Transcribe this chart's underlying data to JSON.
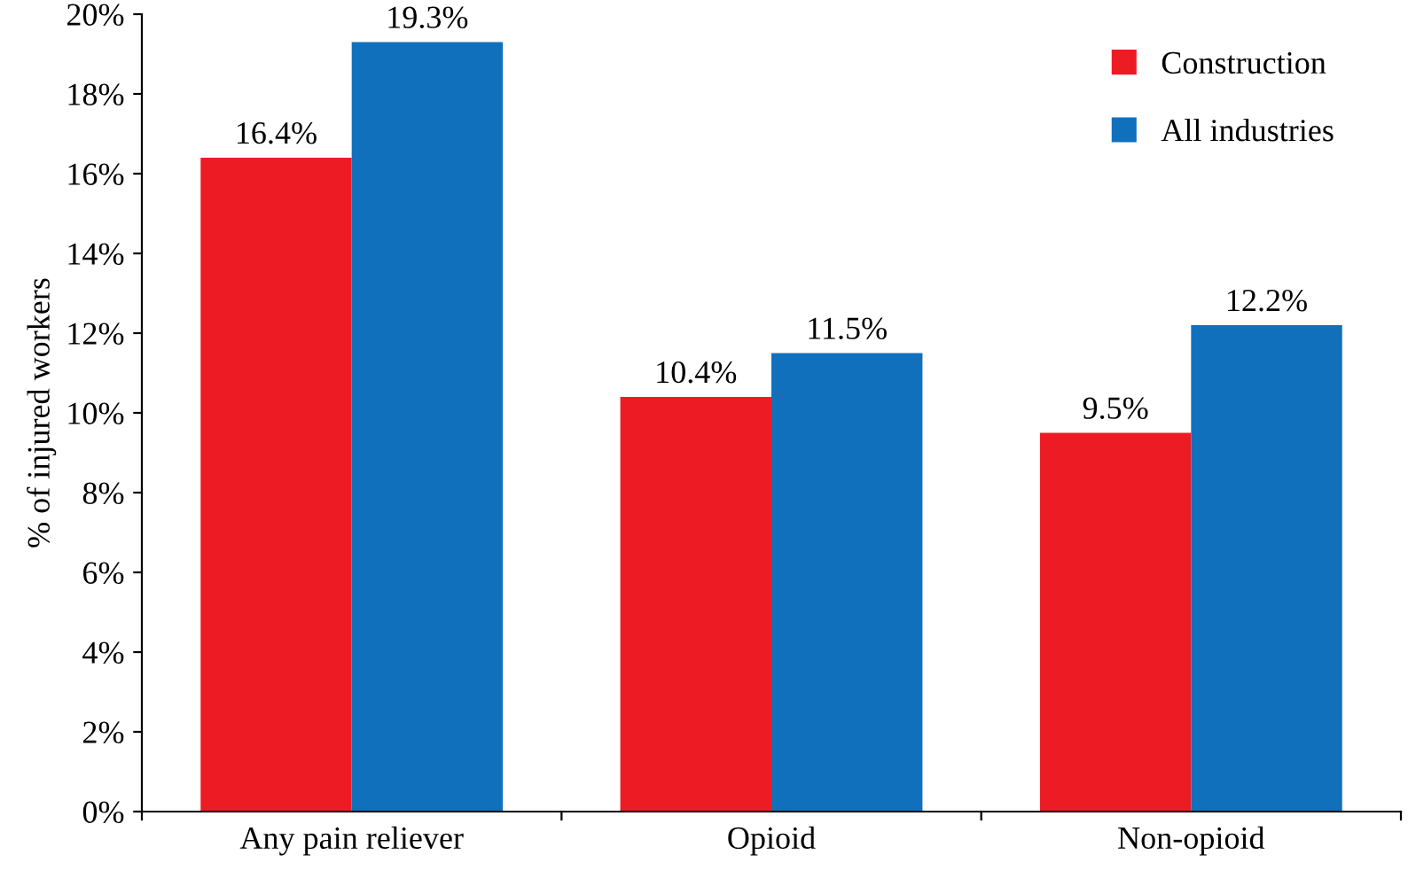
{
  "chart_data": {
    "type": "bar",
    "ylabel": "% of injured workers",
    "categories": [
      "Any pain reliever",
      "Opioid",
      "Non-opioid"
    ],
    "series": [
      {
        "name": "Construction",
        "color": "#ed1c24",
        "values": [
          16.4,
          10.4,
          9.5
        ],
        "value_labels": [
          "16.4%",
          "10.4%",
          "9.5%"
        ]
      },
      {
        "name": "All industries",
        "color": "#1170bb",
        "values": [
          19.3,
          11.5,
          12.2
        ],
        "value_labels": [
          "19.3%",
          "11.5%",
          "12.2%"
        ]
      }
    ],
    "ylim": [
      0,
      20
    ],
    "yticks": [
      {
        "value": 0,
        "label": "0%"
      },
      {
        "value": 2,
        "label": "2%"
      },
      {
        "value": 4,
        "label": "4%"
      },
      {
        "value": 6,
        "label": "6%"
      },
      {
        "value": 8,
        "label": "8%"
      },
      {
        "value": 10,
        "label": "10%"
      },
      {
        "value": 12,
        "label": "12%"
      },
      {
        "value": 14,
        "label": "14%"
      },
      {
        "value": 16,
        "label": "16%"
      },
      {
        "value": 18,
        "label": "18%"
      },
      {
        "value": 20,
        "label": "20%"
      }
    ],
    "grid": false,
    "legend": "top right"
  }
}
